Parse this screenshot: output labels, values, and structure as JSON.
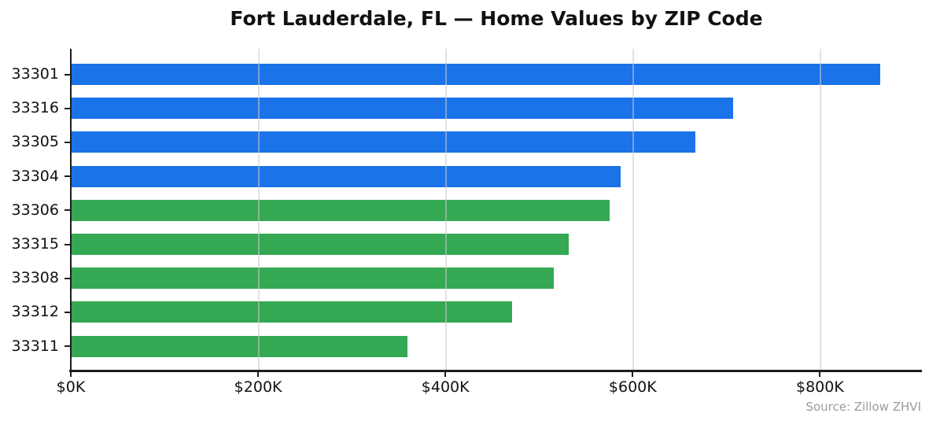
{
  "chart_data": {
    "type": "bar",
    "orientation": "horizontal",
    "title": "Fort Lauderdale, FL — Home Values by ZIP Code",
    "categories": [
      "33301",
      "33316",
      "33305",
      "33304",
      "33306",
      "33315",
      "33308",
      "33312",
      "33311"
    ],
    "values": [
      864000,
      707000,
      667000,
      587000,
      575000,
      531000,
      515000,
      471000,
      359000
    ],
    "bar_colors": [
      "#1a73e8",
      "#1a73e8",
      "#1a73e8",
      "#1a73e8",
      "#34a853",
      "#34a853",
      "#34a853",
      "#34a853",
      "#34a853"
    ],
    "xlabel": "",
    "ylabel": "",
    "xlim": [
      0,
      908000
    ],
    "x_ticks": [
      {
        "value": 0,
        "label": "$0K"
      },
      {
        "value": 200000,
        "label": "$200K"
      },
      {
        "value": 400000,
        "label": "$400K"
      },
      {
        "value": 600000,
        "label": "$600K"
      },
      {
        "value": 800000,
        "label": "$800K"
      }
    ],
    "grid": "vertical gridlines at x ticks, drawn above bars",
    "legend_position": "none",
    "source": "Source: Zillow ZHVI"
  },
  "colors": {
    "blue_bar": "#1a73e8",
    "green_bar": "#34a853",
    "spine": "#1c1c1c",
    "gridline": "#cbcbcb",
    "title_text": "#111111",
    "tick_text": "#111111",
    "source_text": "#9b9b9b"
  }
}
